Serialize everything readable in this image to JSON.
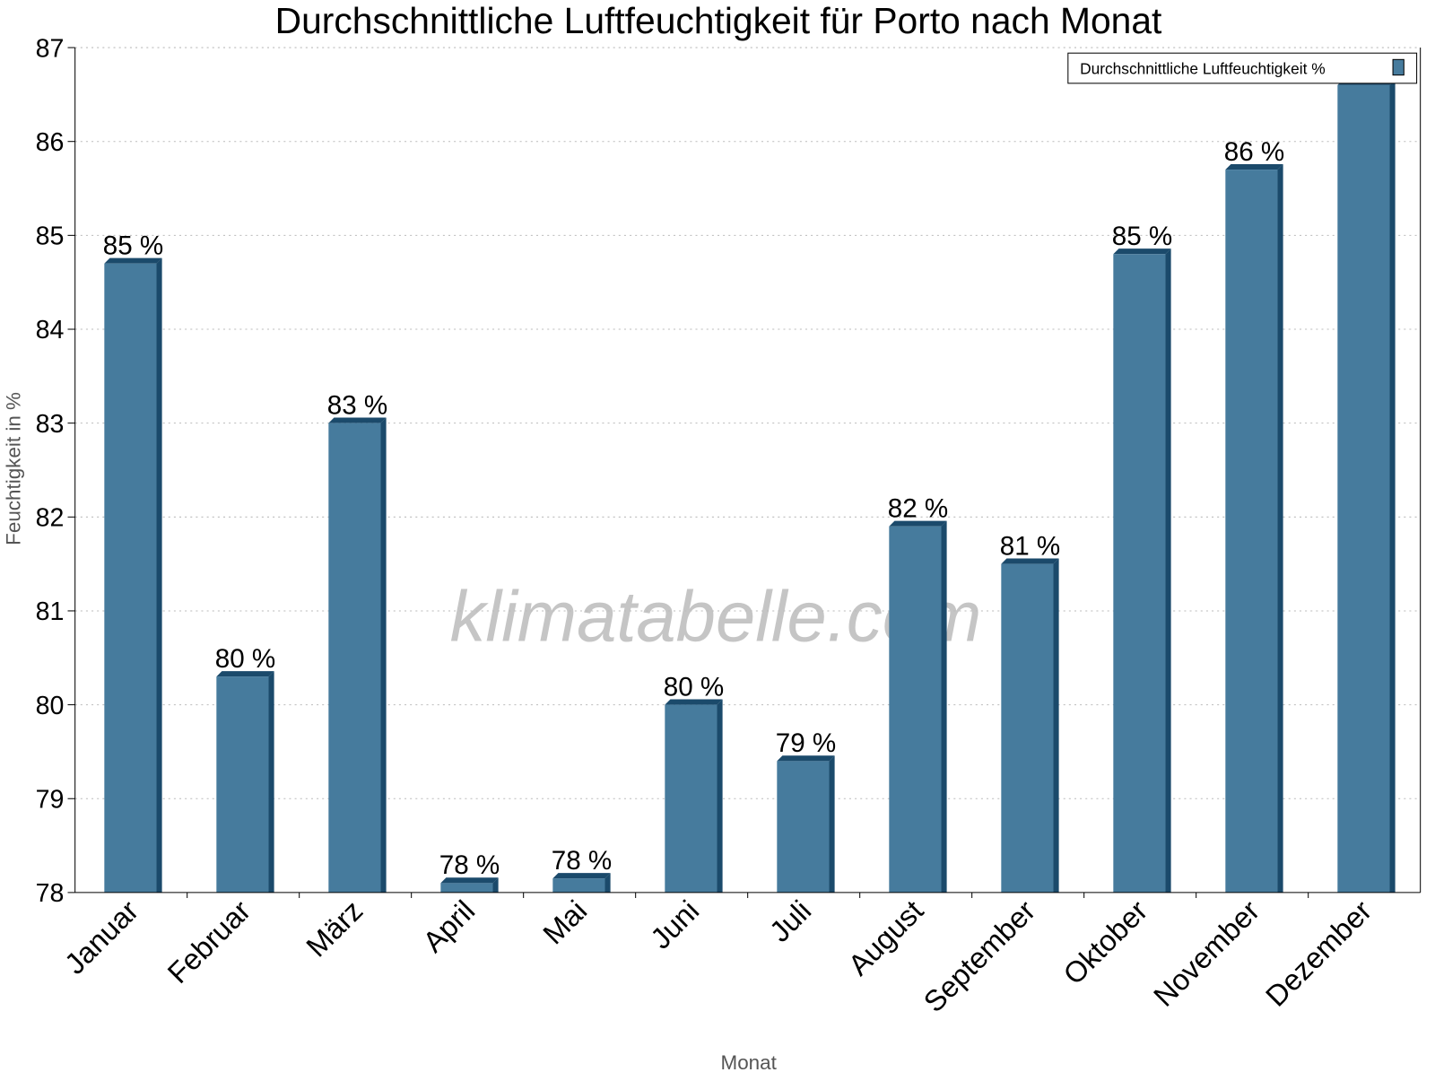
{
  "chart_data": {
    "type": "bar",
    "title": "Durchschnittliche Luftfeuchtigkeit für Porto nach Monat",
    "xlabel": "Monat",
    "ylabel": "Feuchtigkeit in %",
    "ylim": [
      78,
      87
    ],
    "yticks": [
      "78",
      "79",
      "80",
      "81",
      "82",
      "83",
      "84",
      "85",
      "86",
      "87"
    ],
    "grid": true,
    "legend_position": "top-right",
    "watermark": "klimatabelle.com",
    "categories": [
      "Januar",
      "Februar",
      "März",
      "April",
      "Mai",
      "Juni",
      "Juli",
      "August",
      "September",
      "Oktober",
      "November",
      "Dezember"
    ],
    "series": [
      {
        "name": "Durchschnittliche Luftfeuchtigkeit %",
        "color": "#467b9d",
        "side_color": "#1b4a6b",
        "values": [
          84.7,
          80.3,
          83.0,
          78.1,
          78.15,
          80.0,
          79.4,
          81.9,
          81.5,
          84.8,
          85.7,
          86.6
        ],
        "data_labels": [
          "85 %",
          "80 %",
          "83 %",
          "78 %",
          "78 %",
          "80 %",
          "79 %",
          "82 %",
          "81 %",
          "85 %",
          "86 %",
          ""
        ]
      }
    ]
  }
}
